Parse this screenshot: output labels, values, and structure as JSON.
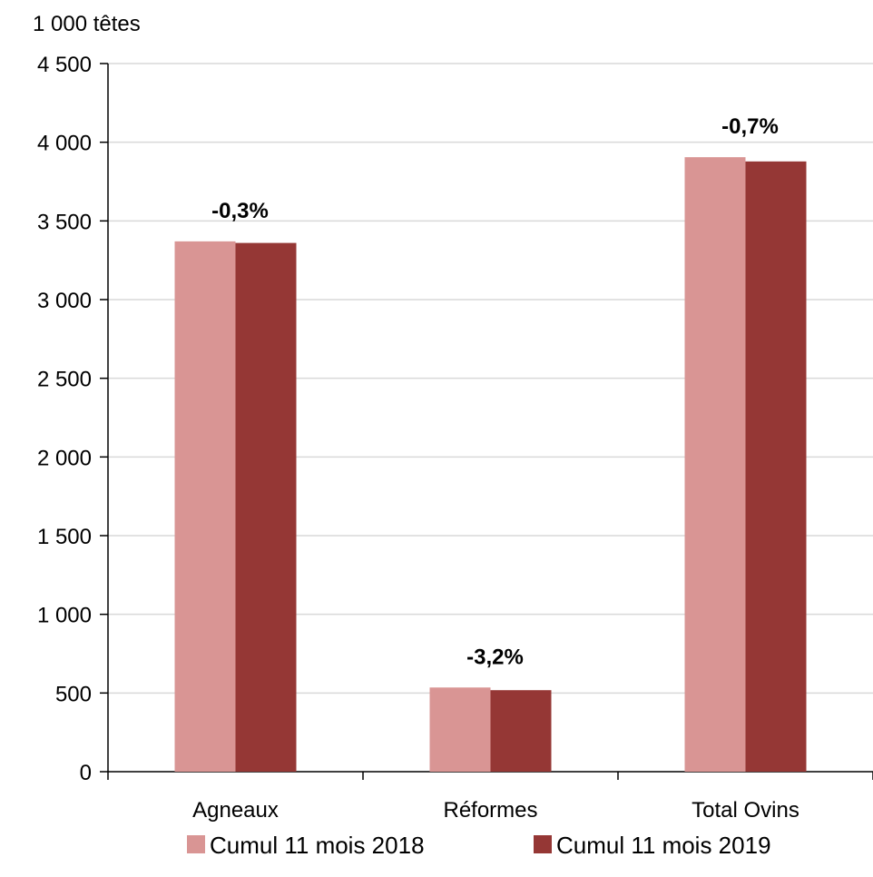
{
  "chart_data": {
    "type": "bar",
    "unit_label": "1 000 têtes",
    "categories": [
      "Agneaux",
      "Réformes",
      "Total Ovins"
    ],
    "series": [
      {
        "name": "Cumul 11 mois 2018",
        "color": "#d99594",
        "values": [
          3370,
          535,
          3905
        ]
      },
      {
        "name": "Cumul 11 mois 2019",
        "color": "#953735",
        "values": [
          3360,
          518,
          3878
        ]
      }
    ],
    "data_labels": [
      "-0,3%",
      "-3,2%",
      "-0,7%"
    ],
    "ylim": [
      0,
      4500
    ],
    "yticks": [
      0,
      500,
      1000,
      1500,
      2000,
      2500,
      3000,
      3500,
      4000,
      4500
    ],
    "ytick_labels": [
      "0",
      "500",
      "1 000",
      "1 500",
      "2 000",
      "2 500",
      "3 000",
      "3 500",
      "4 000",
      "4 500"
    ],
    "grid": true,
    "legend_position": "bottom"
  }
}
